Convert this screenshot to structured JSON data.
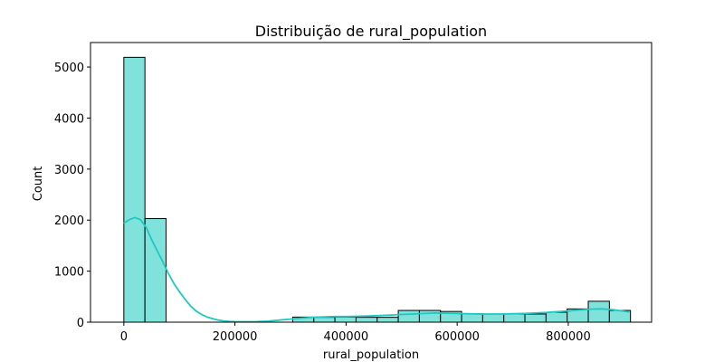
{
  "chart_data": {
    "type": "bar",
    "title": "Distribuição de rural_population",
    "xlabel": "rural_population",
    "ylabel": "Count",
    "xlim": [
      -60000,
      950000
    ],
    "ylim": [
      0,
      5480
    ],
    "xticks": [
      0,
      200000,
      400000,
      600000,
      800000
    ],
    "xtick_labels": [
      "0",
      "200000",
      "400000",
      "600000",
      "800000"
    ],
    "yticks": [
      0,
      1000,
      2000,
      3000,
      4000,
      5000
    ],
    "ytick_labels": [
      "0",
      "1000",
      "2000",
      "3000",
      "4000",
      "5000"
    ],
    "grid": false,
    "bar_color": "#7fe3dc",
    "edge_color": "#000000",
    "kde_color": "#1fc8c0",
    "bins": [
      {
        "x0": 0,
        "x1": 38000,
        "count": 5190
      },
      {
        "x0": 38000,
        "x1": 76000,
        "count": 2030
      },
      {
        "x0": 76000,
        "x1": 114000,
        "count": 0
      },
      {
        "x0": 114000,
        "x1": 152000,
        "count": 0
      },
      {
        "x0": 152000,
        "x1": 190000,
        "count": 0
      },
      {
        "x0": 190000,
        "x1": 228000,
        "count": 0
      },
      {
        "x0": 228000,
        "x1": 266000,
        "count": 0
      },
      {
        "x0": 266000,
        "x1": 304000,
        "count": 0
      },
      {
        "x0": 304000,
        "x1": 342000,
        "count": 100
      },
      {
        "x0": 342000,
        "x1": 380000,
        "count": 95
      },
      {
        "x0": 380000,
        "x1": 418000,
        "count": 100
      },
      {
        "x0": 418000,
        "x1": 456000,
        "count": 95
      },
      {
        "x0": 456000,
        "x1": 494000,
        "count": 95
      },
      {
        "x0": 494000,
        "x1": 532000,
        "count": 230
      },
      {
        "x0": 532000,
        "x1": 570000,
        "count": 230
      },
      {
        "x0": 570000,
        "x1": 608000,
        "count": 210
      },
      {
        "x0": 608000,
        "x1": 646000,
        "count": 165
      },
      {
        "x0": 646000,
        "x1": 684000,
        "count": 160
      },
      {
        "x0": 684000,
        "x1": 722000,
        "count": 160
      },
      {
        "x0": 722000,
        "x1": 760000,
        "count": 160
      },
      {
        "x0": 760000,
        "x1": 798000,
        "count": 195
      },
      {
        "x0": 798000,
        "x1": 836000,
        "count": 260
      },
      {
        "x0": 836000,
        "x1": 874000,
        "count": 410
      },
      {
        "x0": 874000,
        "x1": 912000,
        "count": 230
      }
    ],
    "kde": {
      "x": [
        0,
        10000,
        20000,
        30000,
        40000,
        50000,
        60000,
        70000,
        80000,
        90000,
        100000,
        110000,
        120000,
        130000,
        140000,
        150000,
        160000,
        170000,
        180000,
        190000,
        200000,
        220000,
        240000,
        260000,
        280000,
        300000,
        320000,
        340000,
        360000,
        380000,
        400000,
        420000,
        440000,
        460000,
        480000,
        500000,
        520000,
        540000,
        560000,
        580000,
        600000,
        620000,
        640000,
        660000,
        680000,
        700000,
        720000,
        740000,
        760000,
        780000,
        800000,
        820000,
        840000,
        860000,
        880000,
        900000,
        910000
      ],
      "y": [
        1940,
        2010,
        2050,
        2010,
        1860,
        1620,
        1400,
        1190,
        960,
        760,
        600,
        450,
        320,
        220,
        150,
        100,
        70,
        40,
        25,
        15,
        10,
        8,
        10,
        20,
        40,
        60,
        80,
        95,
        105,
        110,
        110,
        115,
        120,
        130,
        140,
        150,
        160,
        170,
        180,
        175,
        170,
        165,
        160,
        160,
        160,
        165,
        170,
        180,
        190,
        205,
        220,
        240,
        255,
        260,
        245,
        215,
        200
      ]
    }
  }
}
